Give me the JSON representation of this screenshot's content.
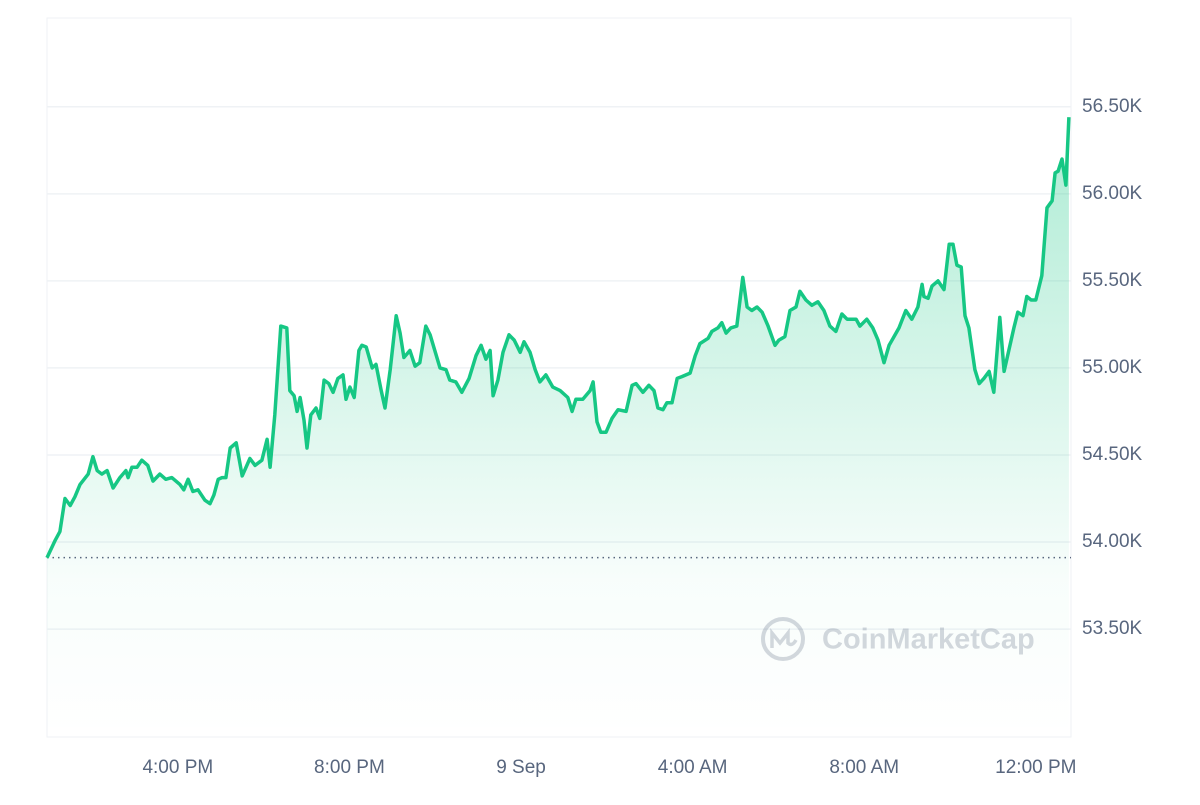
{
  "chart_data": {
    "type": "line",
    "color": "#16c784",
    "grid": true,
    "watermark": "CoinMarketCap",
    "baseline": 53.91,
    "xlim": [
      12.95,
      36.82
    ],
    "ylim": [
      52.88,
      57.01
    ],
    "xticks": [
      {
        "value": 16,
        "label": "4:00 PM"
      },
      {
        "value": 20,
        "label": "8:00 PM"
      },
      {
        "value": 24,
        "label": "9 Sep"
      },
      {
        "value": 28,
        "label": "4:00 AM"
      },
      {
        "value": 32,
        "label": "8:00 AM"
      },
      {
        "value": 36,
        "label": "12:00 PM"
      }
    ],
    "yticks": [
      {
        "value": 53.5,
        "label": "53.50K"
      },
      {
        "value": 54,
        "label": "54.00K"
      },
      {
        "value": 54.5,
        "label": "54.50K"
      },
      {
        "value": 55,
        "label": "55.00K"
      },
      {
        "value": 55.5,
        "label": "55.50K"
      },
      {
        "value": 56,
        "label": "56.00K"
      },
      {
        "value": 56.5,
        "label": "56.50K"
      }
    ],
    "x": [
      12.95,
      13.14,
      13.25,
      13.37,
      13.49,
      13.6,
      13.72,
      13.91,
      14.02,
      14.12,
      14.23,
      14.35,
      14.49,
      14.65,
      14.79,
      14.84,
      14.93,
      15.05,
      15.16,
      15.3,
      15.42,
      15.58,
      15.72,
      15.86,
      16.05,
      16.14,
      16.24,
      16.35,
      16.47,
      16.63,
      16.75,
      16.84,
      16.94,
      17.03,
      17.12,
      17.22,
      17.36,
      17.5,
      17.68,
      17.8,
      17.96,
      18.08,
      18.15,
      18.26,
      18.4,
      18.54,
      18.61,
      18.71,
      18.78,
      18.85,
      18.94,
      19.01,
      19.1,
      19.22,
      19.31,
      19.41,
      19.52,
      19.62,
      19.73,
      19.85,
      19.92,
      20.01,
      20.11,
      20.22,
      20.29,
      20.39,
      20.53,
      20.62,
      20.74,
      20.83,
      20.95,
      21.09,
      21.18,
      21.27,
      21.41,
      21.53,
      21.64,
      21.78,
      21.88,
      21.99,
      22.11,
      22.25,
      22.34,
      22.48,
      22.62,
      22.79,
      22.95,
      23.07,
      23.18,
      23.28,
      23.35,
      23.46,
      23.58,
      23.72,
      23.84,
      23.98,
      24.07,
      24.21,
      24.33,
      24.44,
      24.58,
      24.74,
      24.91,
      25.09,
      25.19,
      25.28,
      25.44,
      25.61,
      25.68,
      25.77,
      25.86,
      25.98,
      26.12,
      26.26,
      26.45,
      26.59,
      26.68,
      26.84,
      26.98,
      27.1,
      27.19,
      27.31,
      27.4,
      27.52,
      27.64,
      27.75,
      27.94,
      28.06,
      28.17,
      28.36,
      28.45,
      28.59,
      28.68,
      28.78,
      28.89,
      29.03,
      29.17,
      29.27,
      29.38,
      29.5,
      29.62,
      29.76,
      29.92,
      30.01,
      30.15,
      30.27,
      30.41,
      30.5,
      30.64,
      30.78,
      30.92,
      31.06,
      31.2,
      31.34,
      31.48,
      31.6,
      31.81,
      31.9,
      32.06,
      32.2,
      32.32,
      32.46,
      32.58,
      32.72,
      32.81,
      32.97,
      33.11,
      33.25,
      33.35,
      33.39,
      33.49,
      33.58,
      33.72,
      33.86,
      33.98,
      34.07,
      34.16,
      34.26,
      34.35,
      34.44,
      34.58,
      34.68,
      34.79,
      34.91,
      35.02,
      35.16,
      35.26,
      35.37,
      35.49,
      35.58,
      35.7,
      35.79,
      35.89,
      36.0,
      36.14,
      36.26,
      36.38,
      36.45,
      36.52,
      36.61,
      36.7,
      36.77
    ],
    "values": [
      53.91,
      54.01,
      54.06,
      54.25,
      54.21,
      54.26,
      54.33,
      54.39,
      54.49,
      54.41,
      54.39,
      54.41,
      54.31,
      54.37,
      54.41,
      54.37,
      54.43,
      54.43,
      54.47,
      54.44,
      54.35,
      54.39,
      54.36,
      54.37,
      54.33,
      54.3,
      54.36,
      54.29,
      54.3,
      54.24,
      54.22,
      54.27,
      54.36,
      54.37,
      54.37,
      54.54,
      54.57,
      54.38,
      54.48,
      54.44,
      54.47,
      54.59,
      54.43,
      54.73,
      55.24,
      55.23,
      54.87,
      54.84,
      54.75,
      54.83,
      54.7,
      54.54,
      54.73,
      54.77,
      54.71,
      54.93,
      54.91,
      54.86,
      54.94,
      54.96,
      54.82,
      54.89,
      54.83,
      55.1,
      55.13,
      55.12,
      55.0,
      55.02,
      54.87,
      54.77,
      54.99,
      55.3,
      55.2,
      55.06,
      55.1,
      55.01,
      55.03,
      55.24,
      55.19,
      55.1,
      55.0,
      54.99,
      54.93,
      54.92,
      54.86,
      54.94,
      55.07,
      55.13,
      55.05,
      55.1,
      54.84,
      54.93,
      55.09,
      55.19,
      55.16,
      55.09,
      55.15,
      55.09,
      54.99,
      54.92,
      54.96,
      54.89,
      54.87,
      54.83,
      54.75,
      54.82,
      54.82,
      54.87,
      54.92,
      54.69,
      54.63,
      54.63,
      54.71,
      54.76,
      54.75,
      54.9,
      54.91,
      54.86,
      54.9,
      54.87,
      54.77,
      54.76,
      54.8,
      54.8,
      54.94,
      54.95,
      54.97,
      55.07,
      55.14,
      55.17,
      55.21,
      55.23,
      55.26,
      55.2,
      55.23,
      55.24,
      55.52,
      55.35,
      55.33,
      55.35,
      55.32,
      55.24,
      55.13,
      55.16,
      55.18,
      55.33,
      55.35,
      55.44,
      55.39,
      55.36,
      55.38,
      55.33,
      55.24,
      55.21,
      55.31,
      55.28,
      55.28,
      55.24,
      55.28,
      55.23,
      55.16,
      55.03,
      55.13,
      55.19,
      55.23,
      55.33,
      55.28,
      55.35,
      55.48,
      55.41,
      55.4,
      55.47,
      55.5,
      55.45,
      55.71,
      55.71,
      55.59,
      55.58,
      55.3,
      55.23,
      54.99,
      54.91,
      54.94,
      54.98,
      54.86,
      55.29,
      54.98,
      55.1,
      55.23,
      55.32,
      55.3,
      55.41,
      55.39,
      55.39,
      55.53,
      55.92,
      55.96,
      56.12,
      56.13,
      56.2,
      56.05,
      56.44
    ]
  }
}
